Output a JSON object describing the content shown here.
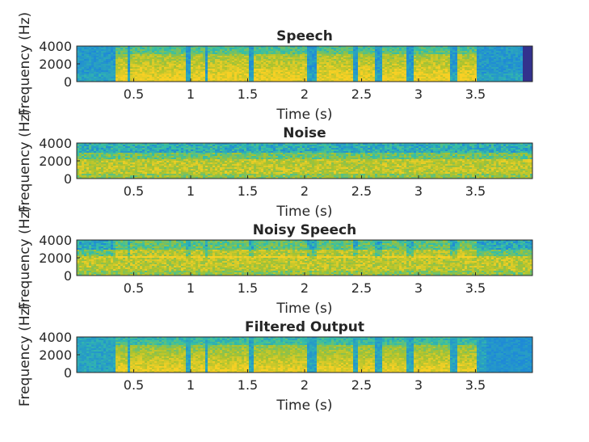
{
  "figure": {
    "colormap": "parula",
    "colors": {
      "low": "#352a87",
      "mid_low": "#1e88d8",
      "mid": "#37c0a4",
      "mid_high": "#a7c230",
      "high": "#f8d024",
      "axis": "#262626"
    }
  },
  "chart_data": [
    {
      "type": "heatmap",
      "title": "Speech",
      "xlabel": "Time (s)",
      "ylabel": "Frequency (Hz)",
      "xlim": [
        0,
        4
      ],
      "ylim": [
        0,
        4000
      ],
      "xticks": [
        "0.5",
        "1",
        "1.5",
        "2",
        "2.5",
        "3",
        "3.5"
      ],
      "yticks": [
        "0",
        "2000",
        "4000"
      ],
      "pattern": "speech",
      "active_segments": [
        [
          0.35,
          0.45
        ],
        [
          0.47,
          0.95
        ],
        [
          1.0,
          1.12
        ],
        [
          1.14,
          1.52
        ],
        [
          1.56,
          2.02
        ],
        [
          2.1,
          2.42
        ],
        [
          2.46,
          2.62
        ],
        [
          2.68,
          2.9
        ],
        [
          2.95,
          3.28
        ],
        [
          3.34,
          3.52
        ]
      ]
    },
    {
      "type": "heatmap",
      "title": "Noise",
      "xlabel": "Time (s)",
      "ylabel": "Frequency (Hz)",
      "xlim": [
        0,
        4
      ],
      "ylim": [
        0,
        4000
      ],
      "xticks": [
        "0.5",
        "1",
        "1.5",
        "2",
        "2.5",
        "3",
        "3.5"
      ],
      "yticks": [
        "0",
        "2000",
        "4000"
      ],
      "pattern": "noise"
    },
    {
      "type": "heatmap",
      "title": "Noisy Speech",
      "xlabel": "Time (s)",
      "ylabel": "Frequency (Hz)",
      "xlim": [
        0,
        4
      ],
      "ylim": [
        0,
        4000
      ],
      "xticks": [
        "0.5",
        "1",
        "1.5",
        "2",
        "2.5",
        "3",
        "3.5"
      ],
      "yticks": [
        "0",
        "2000",
        "4000"
      ],
      "pattern": "noisy"
    },
    {
      "type": "heatmap",
      "title": "Filtered Output",
      "xlabel": "Time (s)",
      "ylabel": "Frequency (Hz)",
      "xlim": [
        0,
        4
      ],
      "ylim": [
        0,
        4000
      ],
      "xticks": [
        "0.5",
        "1",
        "1.5",
        "2",
        "2.5",
        "3",
        "3.5"
      ],
      "yticks": [
        "0",
        "2000",
        "4000"
      ],
      "pattern": "filtered"
    }
  ]
}
